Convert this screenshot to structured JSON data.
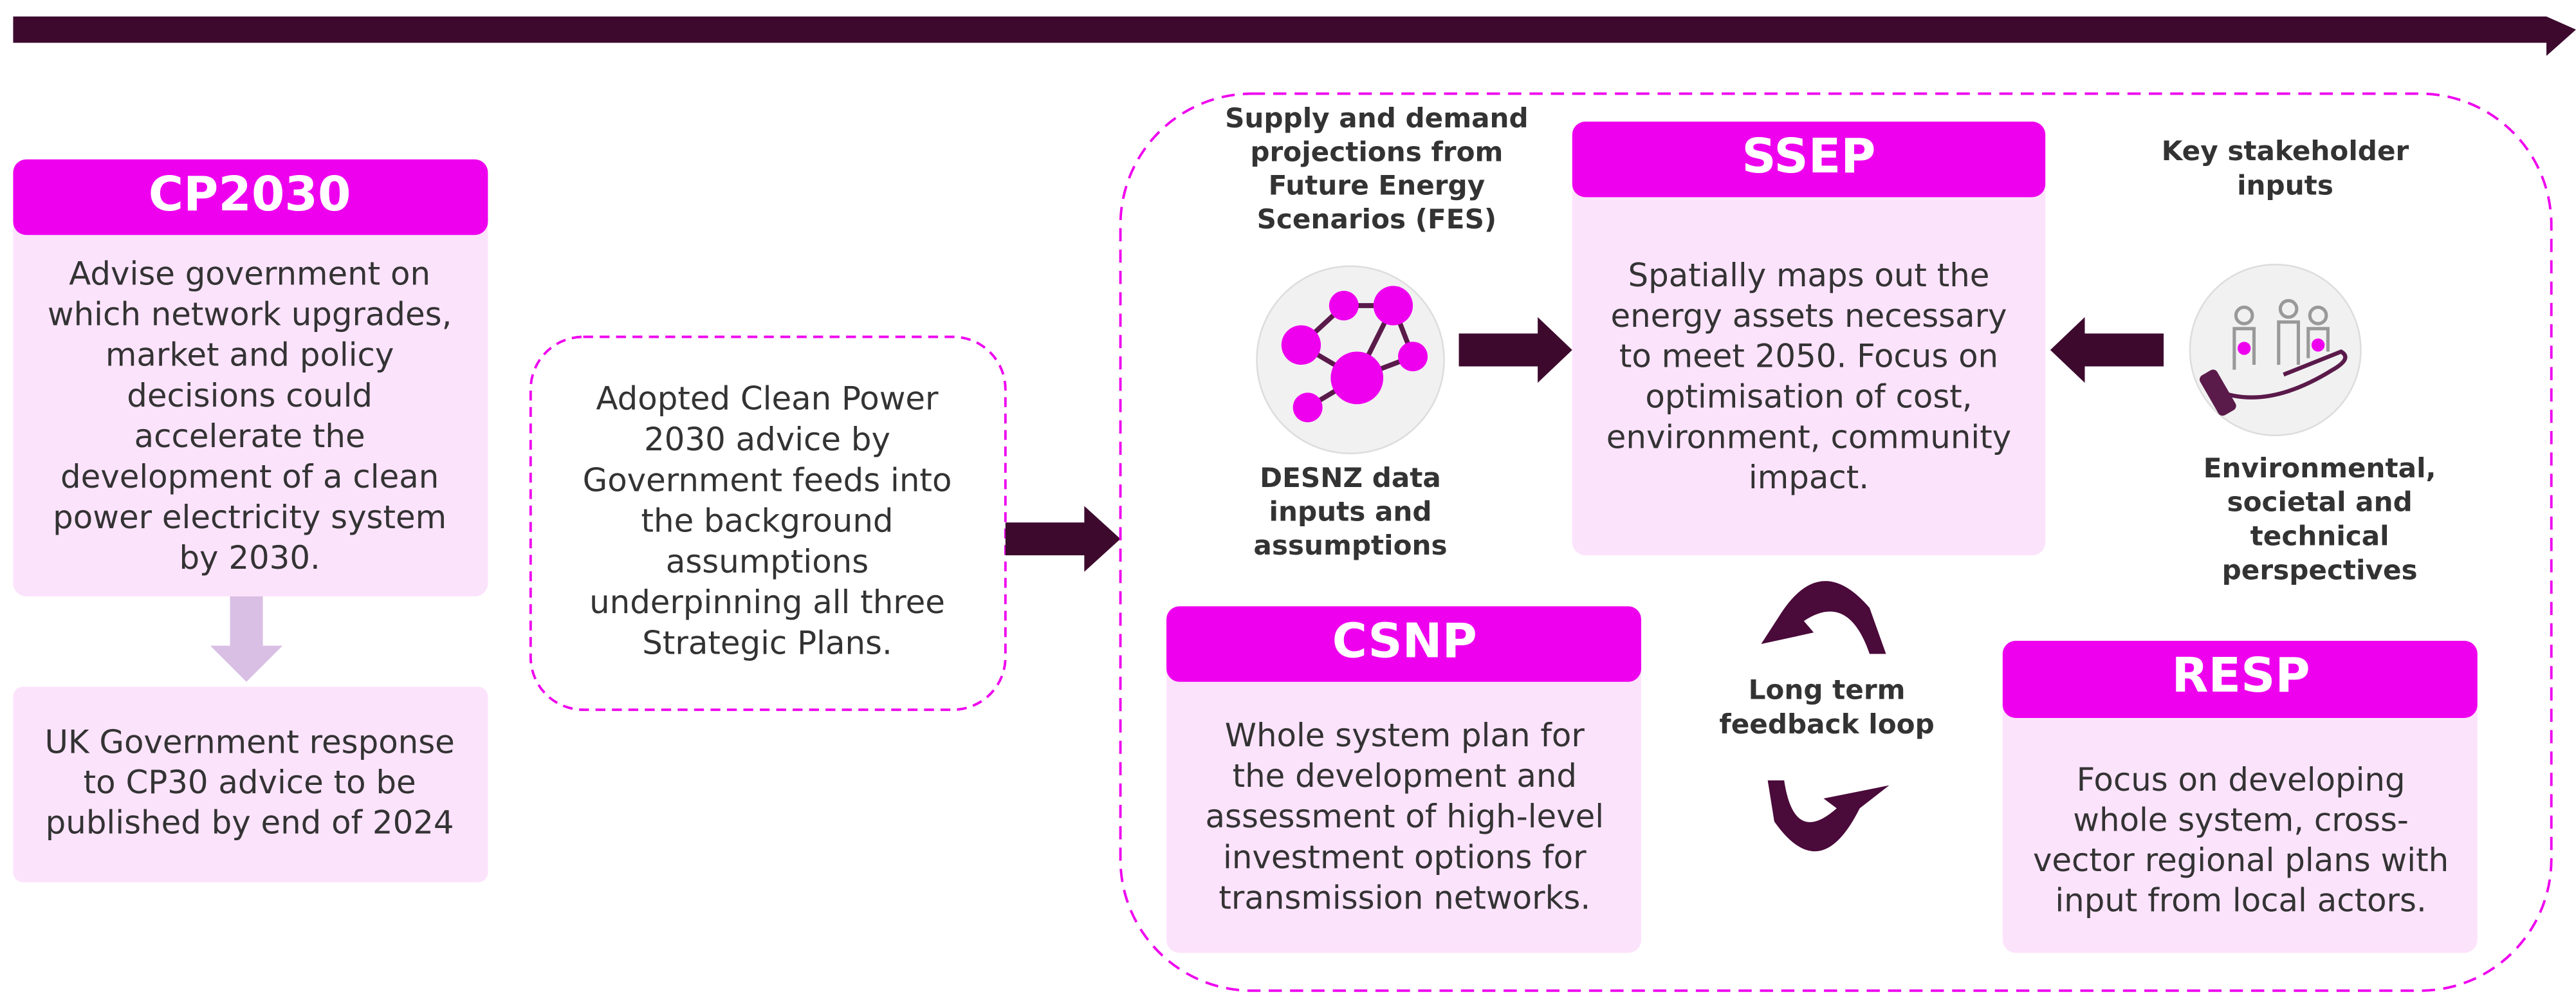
{
  "cp2030": {
    "title": "CP2030",
    "lines": [
      "Advise government on",
      "which network upgrades,",
      "market and policy",
      "decisions could",
      "accelerate the",
      "development of a clean",
      "power electricity system",
      "by 2030."
    ]
  },
  "uk_response": {
    "lines": [
      "UK Government response",
      "to CP30 advice to be",
      "published by end of 2024"
    ]
  },
  "adopted": {
    "lines": [
      "Adopted Clean Power",
      "2030 advice by",
      "Government feeds into",
      "the background",
      "assumptions",
      "underpinning all three",
      "Strategic Plans."
    ]
  },
  "fes": {
    "lines": [
      "Supply and demand",
      "projections from",
      "Future Energy",
      "Scenarios (FES)"
    ]
  },
  "desnz": {
    "lines": [
      "DESNZ data",
      "inputs and",
      "assumptions"
    ]
  },
  "ssep": {
    "title": "SSEP",
    "lines": [
      "Spatially maps out the",
      "energy assets necessary",
      "to meet 2050. Focus on",
      "optimisation of cost,",
      "environment, community",
      "impact."
    ]
  },
  "stakeholder": {
    "lines": [
      "Key stakeholder",
      "inputs"
    ]
  },
  "perspectives": {
    "lines": [
      "Environmental,",
      "societal and",
      "technical",
      "perspectives"
    ]
  },
  "csnp": {
    "title": "CSNP",
    "lines": [
      "Whole system plan for",
      "the development and",
      "assessment of high-level",
      "investment options for",
      "transmission networks."
    ]
  },
  "feedback": {
    "lines": [
      "Long term",
      "feedback loop"
    ]
  },
  "resp": {
    "title": "RESP",
    "lines": [
      "Focus on developing",
      "whole system, cross-",
      "vector regional plans with",
      "input from local actors."
    ]
  }
}
